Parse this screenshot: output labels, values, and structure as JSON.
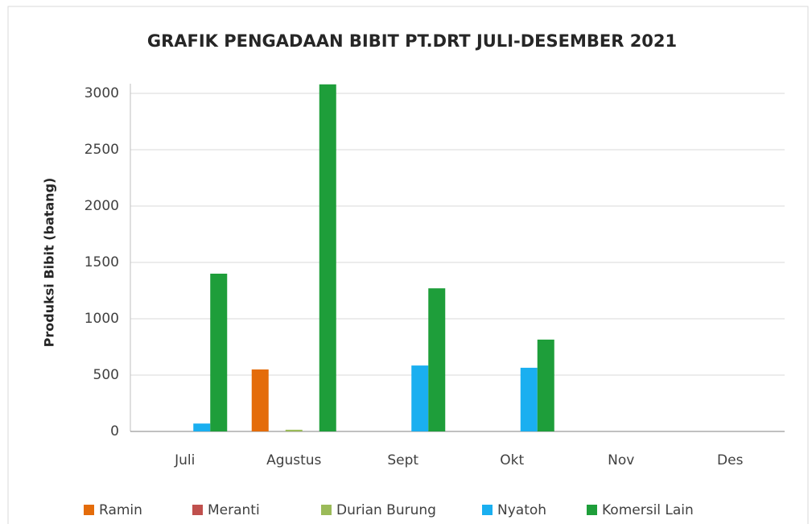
{
  "chart_data": {
    "type": "bar",
    "title": "GRAFIK PENGADAAN BIBIT PT.DRT JULI-DESEMBER 2021",
    "y_label": "Produksi Bibit (batang)",
    "categories": [
      "Juli",
      "Agustus",
      "Sept",
      "Okt",
      "Nov",
      "Des"
    ],
    "series": [
      {
        "name": "Ramin",
        "color": "#e46c0a",
        "values": [
          0,
          550,
          0,
          0,
          0,
          0
        ]
      },
      {
        "name": "Meranti",
        "color": "#c0504d",
        "values": [
          0,
          0,
          0,
          0,
          0,
          0
        ]
      },
      {
        "name": "Durian Burung",
        "color": "#9bbb59",
        "values": [
          0,
          15,
          0,
          0,
          0,
          0
        ]
      },
      {
        "name": "Nyatoh",
        "color": "#1aaff0",
        "values": [
          70,
          0,
          585,
          565,
          0,
          0
        ]
      },
      {
        "name": "Komersil Lain",
        "color": "#1e9e3a",
        "values": [
          1400,
          3080,
          1270,
          815,
          0,
          0
        ]
      }
    ],
    "ylim": [
      0,
      3000
    ],
    "yticks": [
      0,
      500,
      1000,
      1500,
      2000,
      2500,
      3000
    ],
    "grid": true,
    "legend": "bottom"
  }
}
